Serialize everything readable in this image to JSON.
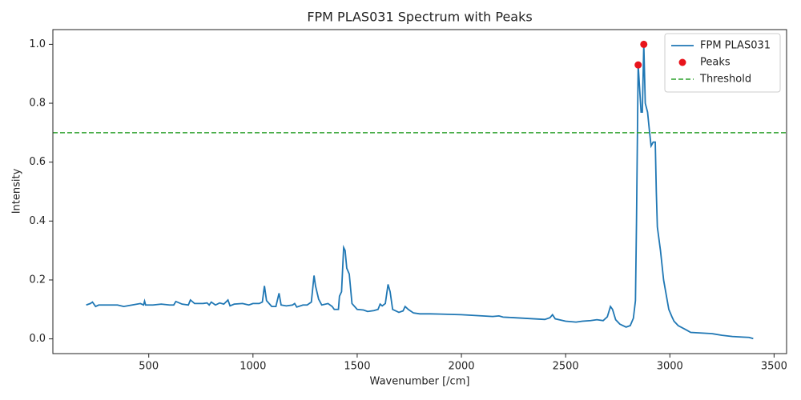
{
  "chart_data": {
    "type": "line",
    "title": "FPM PLAS031 Spectrum with Peaks",
    "x_label": "Wavenumber [/cm]",
    "y_label": "Intensity",
    "xlim": [
      40,
      3560
    ],
    "ylim": [
      -0.05,
      1.05
    ],
    "xticks": [
      500,
      1000,
      1500,
      2000,
      2500,
      3000,
      3500
    ],
    "yticks": [
      {
        "value": 0,
        "label": "0.0"
      },
      0.2,
      0.4,
      0.6,
      0.8,
      {
        "value": 1,
        "label": "1.0"
      }
    ],
    "grid": false,
    "legend": "upper right",
    "series": [
      {
        "name": "FPM PLAS031",
        "type": "line",
        "color": "#1f77b4",
        "x": [
          200,
          220,
          230,
          245,
          260,
          300,
          350,
          380,
          420,
          460,
          475,
          480,
          485,
          520,
          560,
          600,
          620,
          630,
          660,
          690,
          700,
          720,
          760,
          780,
          790,
          800,
          820,
          840,
          860,
          880,
          890,
          910,
          950,
          980,
          1000,
          1030,
          1045,
          1055,
          1065,
          1090,
          1110,
          1125,
          1135,
          1160,
          1190,
          1200,
          1210,
          1240,
          1260,
          1280,
          1293,
          1300,
          1315,
          1330,
          1360,
          1380,
          1390,
          1410,
          1415,
          1425,
          1435,
          1442,
          1450,
          1462,
          1475,
          1500,
          1530,
          1550,
          1580,
          1600,
          1610,
          1620,
          1635,
          1648,
          1658,
          1670,
          1700,
          1720,
          1730,
          1745,
          1770,
          1800,
          1850,
          1900,
          1950,
          2000,
          2050,
          2100,
          2150,
          2180,
          2200,
          2250,
          2300,
          2350,
          2400,
          2425,
          2437,
          2450,
          2500,
          2550,
          2580,
          2620,
          2650,
          2680,
          2700,
          2715,
          2725,
          2740,
          2760,
          2790,
          2810,
          2825,
          2835,
          2840,
          2848,
          2855,
          2862,
          2868,
          2875,
          2882,
          2893,
          2903,
          2910,
          2920,
          2930,
          2935,
          2940,
          2955,
          2970,
          2985,
          2995,
          3010,
          3020,
          3040,
          3080,
          3100,
          3150,
          3200,
          3250,
          3300,
          3350,
          3380,
          3400
        ],
        "values": [
          0.115,
          0.12,
          0.125,
          0.11,
          0.115,
          0.115,
          0.115,
          0.11,
          0.115,
          0.12,
          0.115,
          0.128,
          0.115,
          0.115,
          0.118,
          0.115,
          0.115,
          0.127,
          0.118,
          0.115,
          0.132,
          0.12,
          0.12,
          0.122,
          0.115,
          0.125,
          0.115,
          0.122,
          0.118,
          0.132,
          0.112,
          0.118,
          0.12,
          0.115,
          0.12,
          0.12,
          0.125,
          0.18,
          0.13,
          0.11,
          0.11,
          0.155,
          0.115,
          0.112,
          0.115,
          0.12,
          0.108,
          0.115,
          0.115,
          0.125,
          0.215,
          0.18,
          0.135,
          0.115,
          0.12,
          0.11,
          0.1,
          0.1,
          0.145,
          0.16,
          0.31,
          0.3,
          0.24,
          0.22,
          0.12,
          0.1,
          0.098,
          0.093,
          0.096,
          0.1,
          0.118,
          0.112,
          0.12,
          0.185,
          0.16,
          0.1,
          0.09,
          0.095,
          0.11,
          0.1,
          0.088,
          0.085,
          0.085,
          0.084,
          0.083,
          0.082,
          0.08,
          0.078,
          0.076,
          0.078,
          0.074,
          0.072,
          0.07,
          0.068,
          0.066,
          0.072,
          0.082,
          0.068,
          0.06,
          0.057,
          0.06,
          0.062,
          0.065,
          0.062,
          0.075,
          0.11,
          0.1,
          0.065,
          0.05,
          0.04,
          0.045,
          0.07,
          0.13,
          0.4,
          0.93,
          0.85,
          0.77,
          0.77,
          1.0,
          0.8,
          0.77,
          0.7,
          0.655,
          0.668,
          0.668,
          0.5,
          0.38,
          0.3,
          0.2,
          0.14,
          0.1,
          0.075,
          0.06,
          0.045,
          0.03,
          0.022,
          0.02,
          0.018,
          0.012,
          0.008,
          0.006,
          0.005,
          0.001
        ]
      },
      {
        "name": "Peaks",
        "type": "scatter",
        "color": "#e8141c",
        "x": [
          2848,
          2875
        ],
        "values": [
          0.93,
          1.0
        ]
      }
    ],
    "threshold": {
      "name": "Threshold",
      "value": 0.7,
      "color": "#2ca02c",
      "dashed": true
    }
  }
}
